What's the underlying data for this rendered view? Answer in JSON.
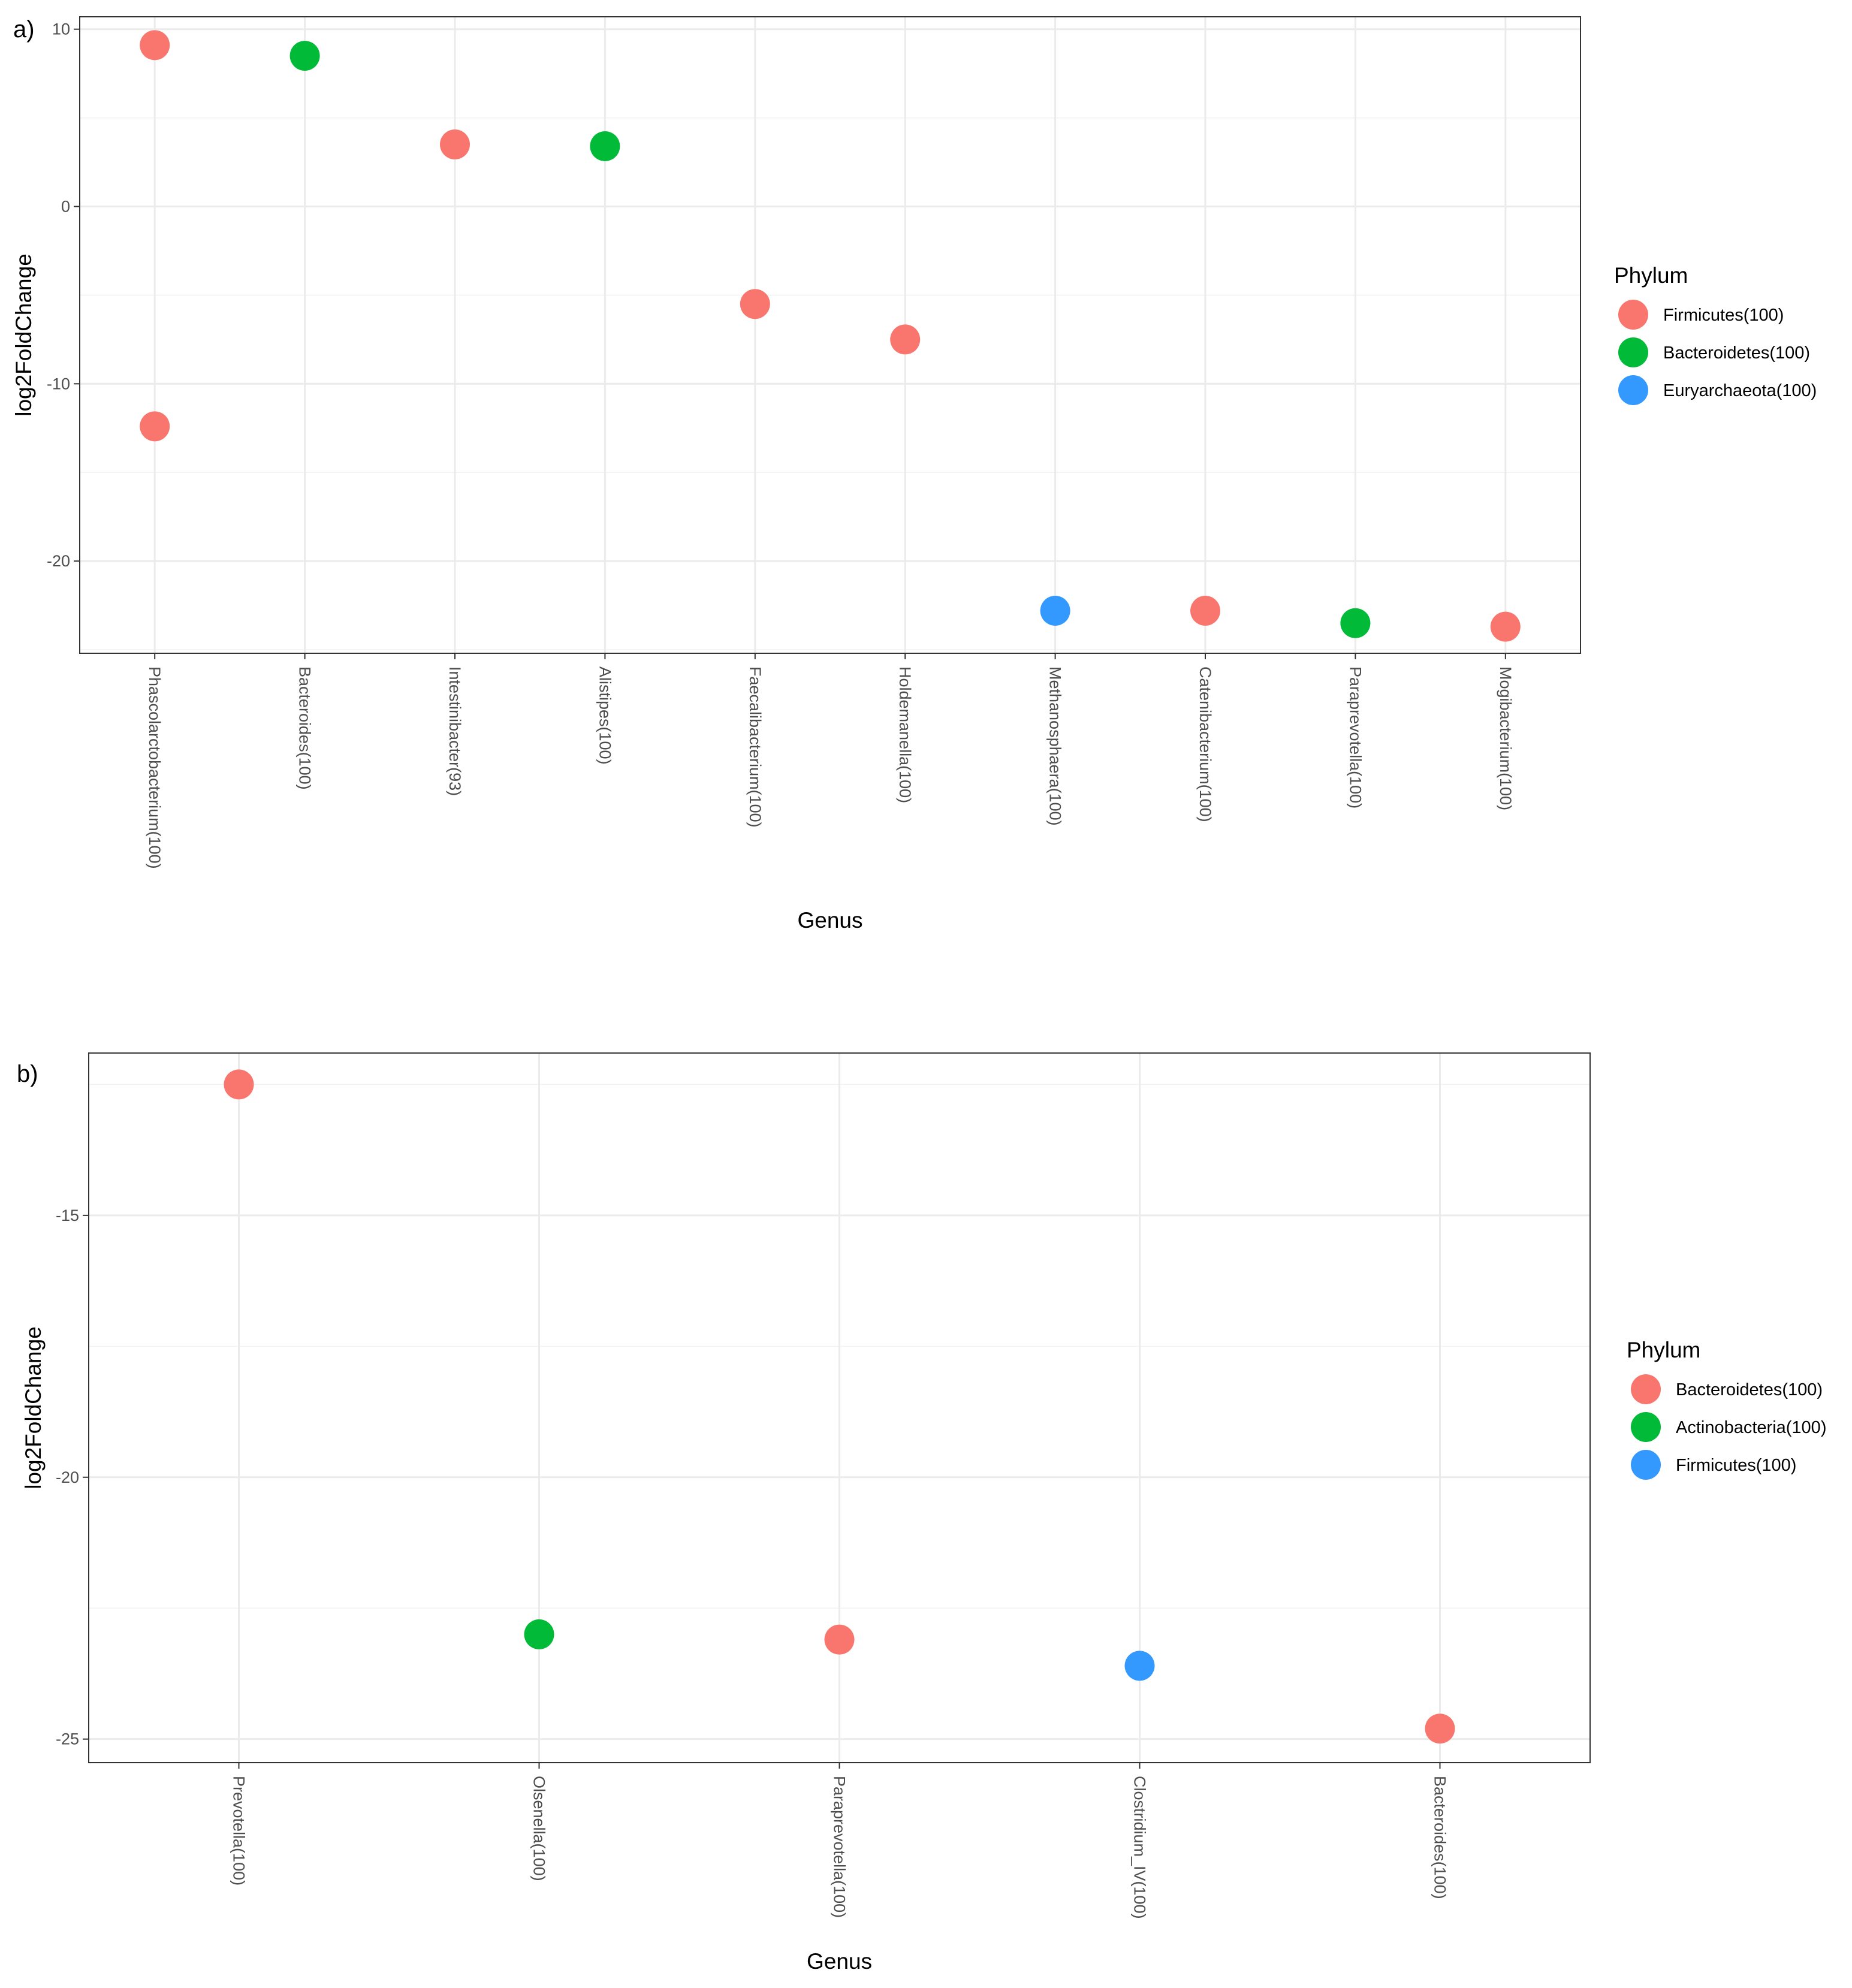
{
  "chart_data": [
    {
      "type": "scatter",
      "panel_label": "a)",
      "xlabel": "Genus",
      "ylabel": "log2FoldChange",
      "categories": [
        "Phascolarctobacterium(100)",
        "Bacteroides(100)",
        "Intestinibacter(93)",
        "Alistipes(100)",
        "Faecalibacterium(100)",
        "Holdemanella(100)",
        "Methanosphaera(100)",
        "Catenibacterium(100)",
        "Paraprevotella(100)",
        "Mogibacterium(100)"
      ],
      "ylim": [
        -25.2,
        10.7
      ],
      "yticks": [
        10,
        0,
        -10,
        -20
      ],
      "ytick_labels": [
        "10",
        "0",
        "-10",
        "-20"
      ],
      "grid": true,
      "legend_title": "Phylum",
      "legend_position": "right",
      "series": [
        {
          "name": "Firmicutes(100)",
          "color": "#F8766D",
          "points": [
            {
              "x": "Phascolarctobacterium(100)",
              "y": 9.1
            },
            {
              "x": "Phascolarctobacterium(100)",
              "y": -12.4
            },
            {
              "x": "Intestinibacter(93)",
              "y": 3.5
            },
            {
              "x": "Faecalibacterium(100)",
              "y": -5.5
            },
            {
              "x": "Holdemanella(100)",
              "y": -7.5
            },
            {
              "x": "Catenibacterium(100)",
              "y": -22.8
            },
            {
              "x": "Mogibacterium(100)",
              "y": -23.7
            }
          ]
        },
        {
          "name": "Bacteroidetes(100)",
          "color": "#00BA38",
          "points": [
            {
              "x": "Bacteroides(100)",
              "y": 8.5
            },
            {
              "x": "Alistipes(100)",
              "y": 3.4
            },
            {
              "x": "Paraprevotella(100)",
              "y": -23.5
            }
          ]
        },
        {
          "name": "Euryarchaeota(100)",
          "color": "#3399FF",
          "points": [
            {
              "x": "Methanosphaera(100)",
              "y": -22.8
            }
          ]
        }
      ]
    },
    {
      "type": "scatter",
      "panel_label": "b)",
      "xlabel": "Genus",
      "ylabel": "log2FoldChange",
      "categories": [
        "Prevotella(100)",
        "Olsenella(100)",
        "Paraprevotella(100)",
        "Clostridium_IV(100)",
        "Bacteroides(100)"
      ],
      "ylim": [
        -25.45,
        -11.9
      ],
      "yticks": [
        -15,
        -20,
        -25
      ],
      "ytick_labels": [
        "-15",
        "-20",
        "-25"
      ],
      "grid": true,
      "legend_title": "Phylum",
      "legend_position": "right",
      "series": [
        {
          "name": "Bacteroidetes(100)",
          "color": "#F8766D",
          "points": [
            {
              "x": "Prevotella(100)",
              "y": -12.5
            },
            {
              "x": "Paraprevotella(100)",
              "y": -23.1
            },
            {
              "x": "Bacteroides(100)",
              "y": -24.8
            }
          ]
        },
        {
          "name": "Actinobacteria(100)",
          "color": "#00BA38",
          "points": [
            {
              "x": "Olsenella(100)",
              "y": -23.0
            }
          ]
        },
        {
          "name": "Firmicutes(100)",
          "color": "#3399FF",
          "points": [
            {
              "x": "Clostridium_IV(100)",
              "y": -23.6
            }
          ]
        }
      ]
    }
  ]
}
